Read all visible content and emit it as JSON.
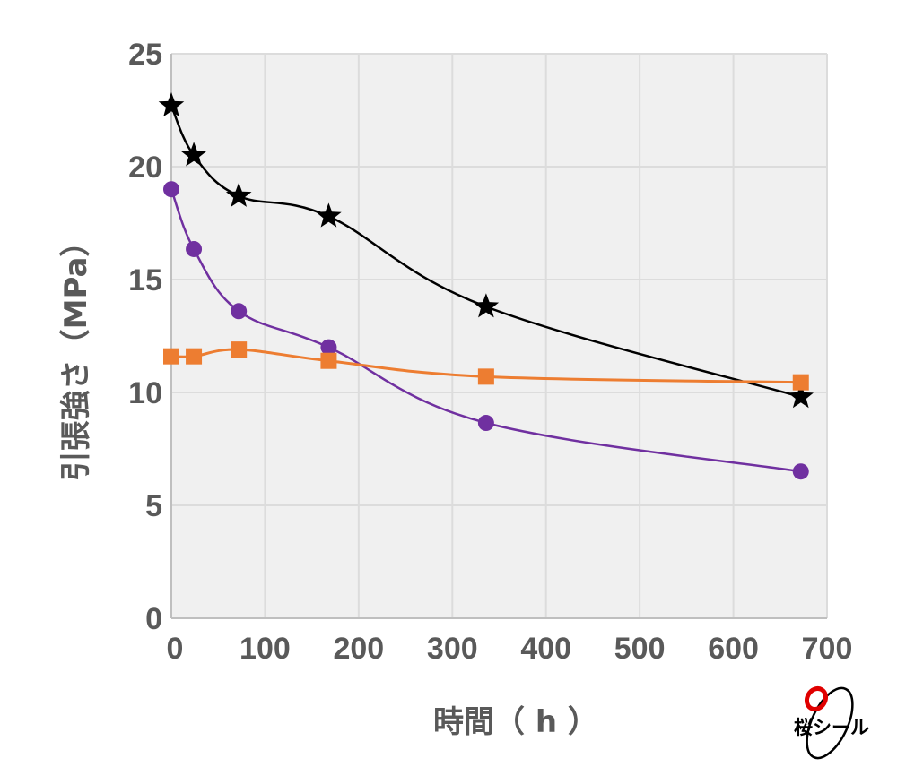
{
  "chart_data": {
    "type": "line",
    "title": "",
    "xlabel": "時間（ h ）",
    "ylabel": "引張強さ（MPa）",
    "xlim": [
      0,
      700
    ],
    "ylim": [
      0,
      25
    ],
    "xticks": [
      0,
      100,
      200,
      300,
      400,
      500,
      600,
      700
    ],
    "yticks": [
      0,
      5,
      10,
      15,
      20,
      25
    ],
    "grid": true,
    "legend": "none",
    "background": "#f0f0f0",
    "series": [
      {
        "marker": "star",
        "color": "#000000",
        "x": [
          0,
          24,
          72,
          168,
          336,
          672
        ],
        "y": [
          22.7,
          20.5,
          18.7,
          17.8,
          13.8,
          9.8
        ]
      },
      {
        "marker": "circle",
        "color": "#7030a0",
        "x": [
          0,
          24,
          72,
          168,
          336,
          672
        ],
        "y": [
          19.0,
          16.35,
          13.6,
          12.0,
          8.65,
          6.5
        ]
      },
      {
        "marker": "square",
        "color": "#ed7d31",
        "x": [
          0,
          24,
          72,
          168,
          336,
          672
        ],
        "y": [
          11.6,
          11.6,
          11.9,
          11.4,
          10.7,
          10.45
        ]
      }
    ]
  },
  "logo": {
    "text": "桜シール",
    "accent": "#e00000"
  }
}
